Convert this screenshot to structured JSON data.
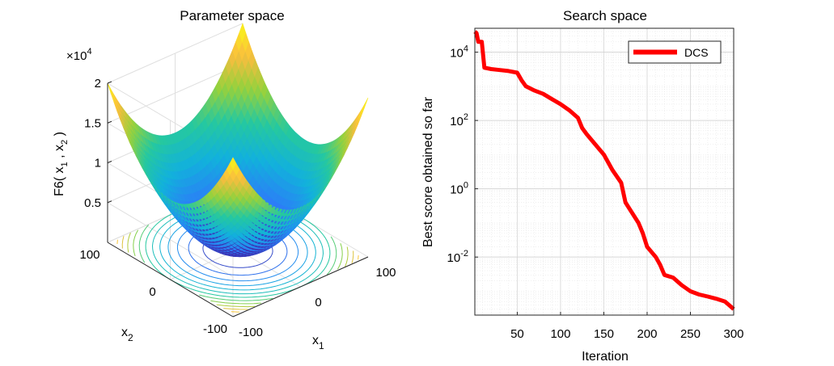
{
  "chart_data": [
    {
      "type": "surface",
      "title": "Parameter space",
      "zlabel": "F6( x_1 , x_2 )",
      "xlabel": "x_1",
      "ylabel": "x_2",
      "z_multiplier": "×10^4",
      "x_ticks": [
        "-100",
        "0",
        "100"
      ],
      "y_ticks": [
        "-100",
        "0",
        "100"
      ],
      "z_ticks": [
        "0.5",
        "1",
        "1.5",
        "2"
      ],
      "xlim": [
        -100,
        100
      ],
      "ylim": [
        -100,
        100
      ],
      "zlim": [
        0,
        20000
      ],
      "function": "x1^2 + x2^2",
      "colormap": [
        "#3e26a8",
        "#2c7ef7",
        "#12b1dc",
        "#25c8a0",
        "#95d13d",
        "#fabd3e",
        "#f9fb15"
      ],
      "contours": true
    },
    {
      "type": "line",
      "title": "Search space",
      "xlabel": "Iteration",
      "ylabel": "Best score obtained so far",
      "yscale": "log",
      "xlim": [
        1,
        300
      ],
      "ylim": [
        0.0002,
        50000
      ],
      "x_ticks": [
        "50",
        "100",
        "150",
        "200",
        "250",
        "300"
      ],
      "y_ticks": [
        {
          "base": "10",
          "exp": "4",
          "value": 10000
        },
        {
          "base": "10",
          "exp": "2",
          "value": 100
        },
        {
          "base": "10",
          "exp": "0",
          "value": 1
        },
        {
          "base": "10",
          "exp": "-2",
          "value": 0.01
        }
      ],
      "grid": true,
      "legend": "top-right",
      "series": [
        {
          "name": "DCS",
          "color": "#ff0000",
          "x": [
            1,
            3,
            5,
            7,
            9,
            12,
            20,
            30,
            40,
            50,
            55,
            60,
            70,
            80,
            90,
            100,
            110,
            120,
            125,
            130,
            140,
            150,
            160,
            170,
            175,
            180,
            190,
            195,
            200,
            210,
            215,
            220,
            230,
            240,
            250,
            260,
            270,
            280,
            290,
            300
          ],
          "y": [
            40000,
            36000,
            20000,
            20000,
            20000,
            3500,
            3200,
            3000,
            2800,
            2500,
            1500,
            1000,
            750,
            600,
            420,
            300,
            200,
            120,
            60,
            40,
            20,
            10,
            3.5,
            1.5,
            0.4,
            0.25,
            0.1,
            0.05,
            0.02,
            0.01,
            0.006,
            0.003,
            0.0025,
            0.0015,
            0.001,
            0.0008,
            0.0007,
            0.0006,
            0.0005,
            0.0003
          ]
        }
      ]
    }
  ]
}
